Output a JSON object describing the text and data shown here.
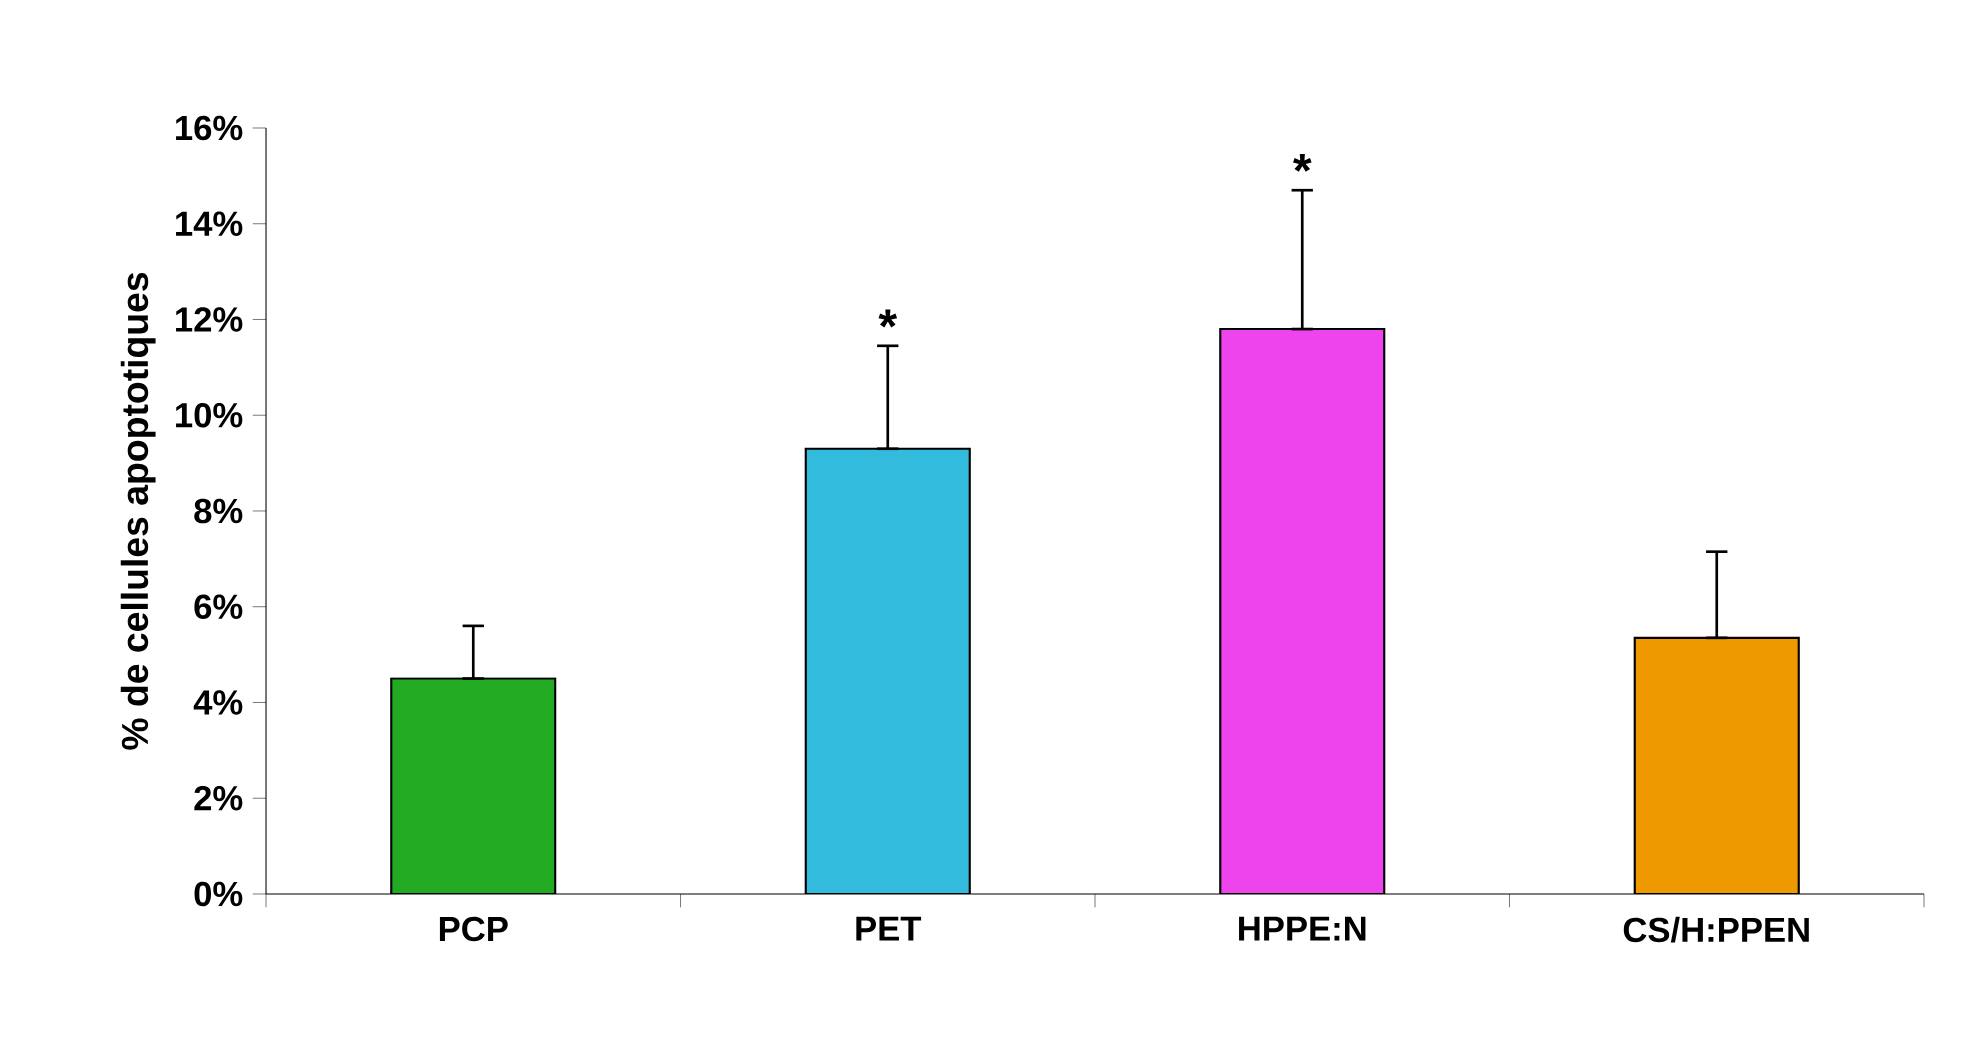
{
  "chart_data": {
    "type": "bar",
    "ylabel": "% de  cellules apoptotiques",
    "categories": [
      "PCP",
      "PET",
      "HPPE:N",
      "CS/H:PPEN"
    ],
    "values": [
      4.5,
      9.3,
      11.8,
      5.35
    ],
    "colors": [
      "#22aa22",
      "#33bbdd",
      "#ee44ee",
      "#ee9900"
    ],
    "errors": [
      [
        4.5,
        5.6
      ],
      [
        9.3,
        11.45
      ],
      [
        11.8,
        14.7
      ],
      [
        5.35,
        7.15
      ]
    ],
    "ylim": [
      0,
      16
    ],
    "yticks": [
      {
        "value": 0,
        "label": "0%"
      },
      {
        "value": 2,
        "label": "2%"
      },
      {
        "value": 4,
        "label": "4%"
      },
      {
        "value": 6,
        "label": "6%"
      },
      {
        "value": 8,
        "label": "8%"
      },
      {
        "value": 10,
        "label": "10%"
      },
      {
        "value": 12,
        "label": "12%"
      },
      {
        "value": 14,
        "label": "14%"
      },
      {
        "value": 16,
        "label": "16%"
      }
    ],
    "annotations": [
      {
        "text": "*",
        "x": "PET",
        "y": 11.45
      },
      {
        "text": "*",
        "x": "HPPE:N",
        "y": 14.7
      }
    ],
    "grid": false
  }
}
